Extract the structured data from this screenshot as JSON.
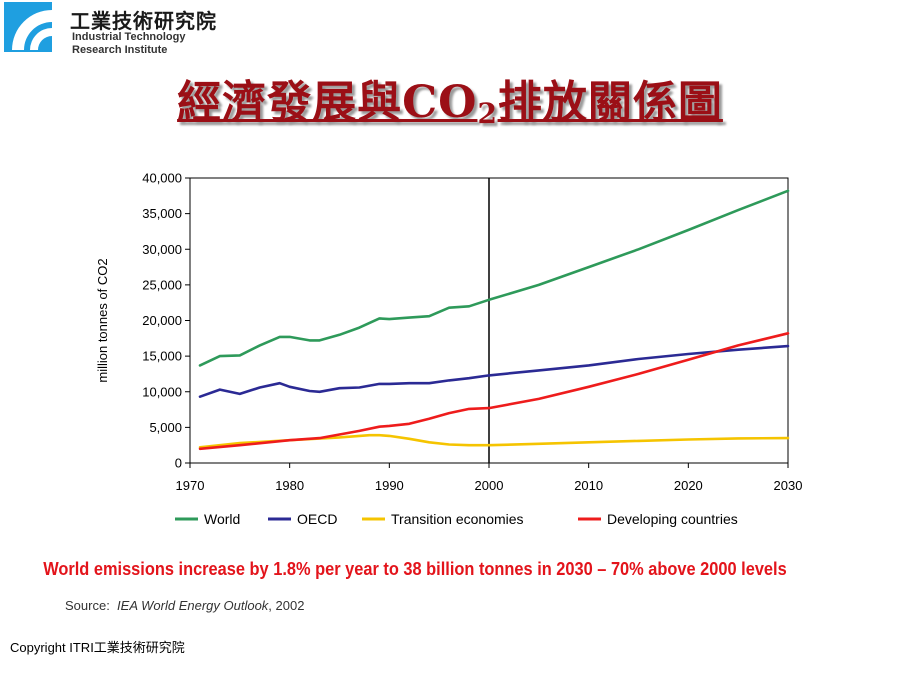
{
  "header": {
    "org_name": "工業技術研究院",
    "org_name_en": "Industrial Technology Research Institute"
  },
  "title": {
    "main": "經濟發展與CO",
    "sub": "2",
    "rest": "排放關係圖"
  },
  "chart_data": {
    "type": "line",
    "title": "",
    "xlabel": "",
    "ylabel": "million tonnes of CO2",
    "xlim": [
      1970,
      2030
    ],
    "ylim": [
      0,
      40000
    ],
    "x_ticks": [
      "1970",
      "1980",
      "1990",
      "2000",
      "2010",
      "2020",
      "2030"
    ],
    "y_ticks": [
      "0",
      "5,000",
      "10,000",
      "15,000",
      "20,000",
      "25,000",
      "30,000",
      "35,000",
      "40,000"
    ],
    "vertical_marker_x": 2000,
    "grid": false,
    "legend_position": "bottom",
    "series": [
      {
        "name": "World",
        "color": "#2e9a5a",
        "points": [
          [
            1971,
            13700
          ],
          [
            1973,
            15000
          ],
          [
            1975,
            15100
          ],
          [
            1977,
            16500
          ],
          [
            1979,
            17700
          ],
          [
            1980,
            17700
          ],
          [
            1982,
            17200
          ],
          [
            1983,
            17200
          ],
          [
            1985,
            18000
          ],
          [
            1987,
            19000
          ],
          [
            1989,
            20300
          ],
          [
            1990,
            20200
          ],
          [
            1992,
            20400
          ],
          [
            1994,
            20600
          ],
          [
            1996,
            21800
          ],
          [
            1998,
            22000
          ],
          [
            2000,
            22900
          ],
          [
            2005,
            25000
          ],
          [
            2010,
            27500
          ],
          [
            2015,
            30000
          ],
          [
            2020,
            32700
          ],
          [
            2025,
            35500
          ],
          [
            2030,
            38200
          ]
        ]
      },
      {
        "name": "OECD",
        "color": "#2b2a94",
        "points": [
          [
            1971,
            9300
          ],
          [
            1973,
            10300
          ],
          [
            1975,
            9700
          ],
          [
            1977,
            10600
          ],
          [
            1979,
            11200
          ],
          [
            1980,
            10700
          ],
          [
            1982,
            10100
          ],
          [
            1983,
            10000
          ],
          [
            1985,
            10500
          ],
          [
            1987,
            10600
          ],
          [
            1989,
            11100
          ],
          [
            1990,
            11100
          ],
          [
            1992,
            11200
          ],
          [
            1994,
            11200
          ],
          [
            1996,
            11600
          ],
          [
            1998,
            11900
          ],
          [
            2000,
            12300
          ],
          [
            2005,
            13000
          ],
          [
            2010,
            13700
          ],
          [
            2015,
            14600
          ],
          [
            2020,
            15300
          ],
          [
            2025,
            15900
          ],
          [
            2030,
            16400
          ]
        ]
      },
      {
        "name": "Transition economies",
        "color": "#f5c400",
        "points": [
          [
            1971,
            2200
          ],
          [
            1975,
            2800
          ],
          [
            1980,
            3200
          ],
          [
            1985,
            3600
          ],
          [
            1988,
            3900
          ],
          [
            1989,
            3900
          ],
          [
            1990,
            3800
          ],
          [
            1992,
            3400
          ],
          [
            1994,
            2900
          ],
          [
            1996,
            2600
          ],
          [
            1998,
            2500
          ],
          [
            2000,
            2500
          ],
          [
            2005,
            2700
          ],
          [
            2010,
            2900
          ],
          [
            2015,
            3100
          ],
          [
            2020,
            3300
          ],
          [
            2025,
            3450
          ],
          [
            2030,
            3500
          ]
        ]
      },
      {
        "name": "Developing countries",
        "color": "#ee1c1c",
        "points": [
          [
            1971,
            2000
          ],
          [
            1975,
            2500
          ],
          [
            1980,
            3200
          ],
          [
            1983,
            3500
          ],
          [
            1985,
            4000
          ],
          [
            1987,
            4500
          ],
          [
            1989,
            5100
          ],
          [
            1990,
            5200
          ],
          [
            1992,
            5500
          ],
          [
            1994,
            6200
          ],
          [
            1996,
            7000
          ],
          [
            1998,
            7600
          ],
          [
            2000,
            7700
          ],
          [
            2005,
            9000
          ],
          [
            2010,
            10700
          ],
          [
            2015,
            12500
          ],
          [
            2020,
            14500
          ],
          [
            2025,
            16500
          ],
          [
            2030,
            18200
          ]
        ]
      }
    ]
  },
  "caption": "World emissions increase by 1.8% per year to 38 billion tonnes in 2030 – 70% above 2000 levels",
  "source": {
    "label": "Source:",
    "publication": "IEA World Energy Outlook",
    "year": ", 2002"
  },
  "footer": {
    "copyright": "Copyright   ITRI工業技術研究院"
  }
}
